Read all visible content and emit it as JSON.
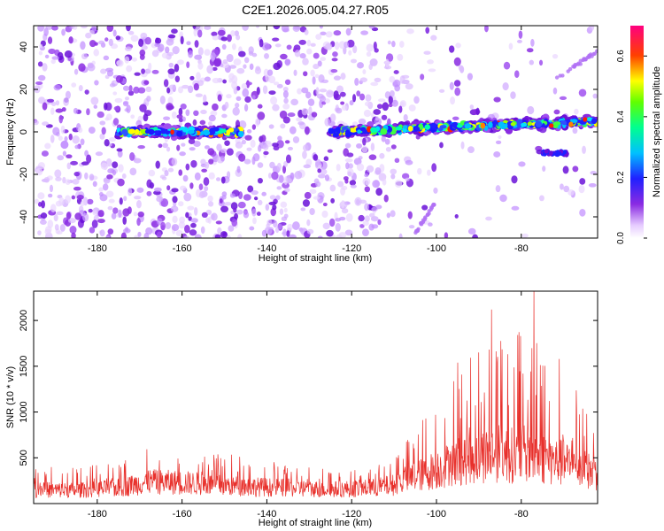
{
  "title": "C2E1.2026.005.04.27.R05",
  "colors": {
    "snr_line": "#e8302b",
    "axis": "#000000",
    "background": "#ffffff",
    "spectrogram_purple": "#8a2be2"
  },
  "chart_data": [
    {
      "type": "heatmap",
      "title": "C2E1.2026.005.04.27.R05",
      "xlabel": "Height of straight line (km)",
      "ylabel": "Frequency (Hz)",
      "xlim": [
        -195,
        -62
      ],
      "ylim": [
        -50,
        50
      ],
      "x_ticks": [
        -180,
        -160,
        -140,
        -120,
        -100,
        -80
      ],
      "y_ticks": [
        -40,
        -20,
        0,
        20,
        40
      ],
      "colorbar": {
        "label": "Normalized spectral amplitude",
        "range": [
          0.0,
          0.7
        ],
        "ticks": [
          "0.0",
          "0.2",
          "0.4",
          "0.6"
        ],
        "colormap": "rainbow (white-purple-blue-cyan-green-yellow-red-magenta)"
      },
      "features": [
        {
          "description": "strong signal band centered near 0 Hz",
          "x_range": [
            -175,
            -146
          ],
          "frequency_hz": 0
        },
        {
          "description": "strong signal band rising slightly with height",
          "x_range": [
            -125,
            -62
          ],
          "frequency_hz": [
            0,
            5
          ]
        },
        {
          "description": "weak diagonal streak",
          "x_range": [
            -105,
            -100
          ],
          "frequency_hz": [
            -48,
            -32
          ]
        },
        {
          "description": "weak diagonal streak",
          "x_range": [
            -72,
            -62
          ],
          "frequency_hz": [
            25,
            38
          ]
        }
      ]
    },
    {
      "type": "line",
      "xlabel": "Height of straight line (km)",
      "ylabel": "SNR (10 * v/v)",
      "xlim": [
        -195,
        -62
      ],
      "ylim": [
        0,
        2320
      ],
      "x_ticks": [
        -180,
        -160,
        -140,
        -120,
        -100,
        -80
      ],
      "y_ticks": [
        500,
        1000,
        1500,
        2000
      ],
      "envelope": [
        {
          "x": -195,
          "baseline": 180,
          "peak": 420
        },
        {
          "x": -185,
          "baseline": 170,
          "peak": 400
        },
        {
          "x": -175,
          "baseline": 200,
          "peak": 450
        },
        {
          "x": -168,
          "baseline": 280,
          "peak": 600
        },
        {
          "x": -160,
          "baseline": 270,
          "peak": 560
        },
        {
          "x": -152,
          "baseline": 240,
          "peak": 560
        },
        {
          "x": -145,
          "baseline": 220,
          "peak": 520
        },
        {
          "x": -135,
          "baseline": 200,
          "peak": 420
        },
        {
          "x": -125,
          "baseline": 180,
          "peak": 380
        },
        {
          "x": -115,
          "baseline": 200,
          "peak": 420
        },
        {
          "x": -110,
          "baseline": 240,
          "peak": 500
        },
        {
          "x": -106,
          "baseline": 330,
          "peak": 750
        },
        {
          "x": -102,
          "baseline": 400,
          "peak": 1000
        },
        {
          "x": -98,
          "baseline": 480,
          "peak": 1200
        },
        {
          "x": -94,
          "baseline": 560,
          "peak": 1550
        },
        {
          "x": -90,
          "baseline": 600,
          "peak": 1700
        },
        {
          "x": -86,
          "baseline": 650,
          "peak": 2050
        },
        {
          "x": -82,
          "baseline": 620,
          "peak": 1800
        },
        {
          "x": -78,
          "baseline": 640,
          "peak": 2300
        },
        {
          "x": -74,
          "baseline": 560,
          "peak": 1600
        },
        {
          "x": -70,
          "baseline": 520,
          "peak": 1400
        },
        {
          "x": -66,
          "baseline": 450,
          "peak": 1250
        },
        {
          "x": -62,
          "baseline": 380,
          "peak": 1050
        }
      ],
      "annotated_peaks": [
        {
          "x": -87,
          "y": 2120
        },
        {
          "x": -77,
          "y": 2320
        },
        {
          "x": -71,
          "y": 1580
        },
        {
          "x": -95,
          "y": 1540
        }
      ]
    }
  ]
}
